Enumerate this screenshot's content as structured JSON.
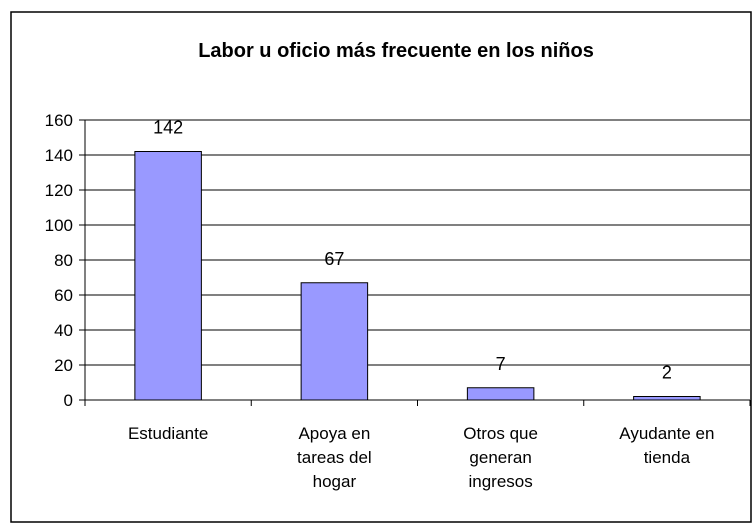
{
  "chart_data": {
    "type": "bar",
    "title": "Labor u oficio más frecuente en los niños",
    "categories": [
      "Estudiante",
      "Apoya en tareas del hogar",
      "Otros que generan ingresos",
      "Ayudante en tienda"
    ],
    "values": [
      142,
      67,
      7,
      2
    ],
    "color": "#9999ff",
    "ylim": [
      0,
      160
    ],
    "yticks": [
      0,
      20,
      40,
      60,
      80,
      100,
      120,
      140,
      160
    ],
    "grid": true
  }
}
